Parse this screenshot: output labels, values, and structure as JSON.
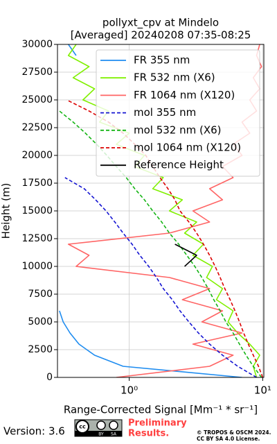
{
  "chart_data": {
    "type": "line",
    "title": "pollyxt_cpv at Mindelo",
    "subtitle": "[Averaged] 20240208 07:35-08:25",
    "x_label": "Range-Corrected Signal [Mm⁻¹ * sr⁻¹]",
    "y_label": "Height (m)",
    "xscale": "log",
    "grid": true,
    "legend": "upper right",
    "xlim": [
      0.29,
      10.2
    ],
    "xticks": [
      {
        "value": 1,
        "label": "10⁰"
      },
      {
        "value": 10,
        "label": "10¹"
      }
    ],
    "ylim": [
      0,
      30000
    ],
    "yticks": [
      0,
      2500,
      5000,
      7500,
      10000,
      12500,
      15000,
      17500,
      20000,
      22500,
      25000,
      27500,
      30000
    ],
    "y": [
      0,
      1000,
      2000,
      3000,
      4000,
      5000,
      6000,
      7000,
      8000,
      9000,
      10000,
      11000,
      12000,
      13000,
      14000,
      15000,
      16000,
      17000,
      18000,
      19000,
      20000,
      21000,
      22000,
      23000,
      24000,
      25000,
      26000,
      27000,
      28000,
      29000,
      30000
    ],
    "series": [
      {
        "name": "FR 355 nm",
        "color": "#1e8cf0",
        "dash": false,
        "values": [
          7,
          0.9,
          0.55,
          0.42,
          0.36,
          0.32,
          0.3,
          null,
          null,
          null,
          null,
          null,
          null,
          null,
          null,
          null,
          null,
          null,
          null,
          null,
          null,
          null,
          null,
          null,
          null,
          null,
          null,
          null,
          null,
          0.4,
          0.35
        ]
      },
      {
        "name": "FR 532 nm (X6)",
        "color": "#80f000",
        "dash": false,
        "values": [
          9,
          8.5,
          9.5,
          8,
          6.5,
          5.5,
          6,
          4.5,
          5,
          3.8,
          4.2,
          3,
          3.6,
          2.6,
          3.2,
          2,
          2.5,
          1.5,
          1.8,
          1.1,
          1.3,
          0.8,
          1,
          0.6,
          0.7,
          0.45,
          0.55,
          0.38,
          0.5,
          0.35,
          0.4
        ]
      },
      {
        "name": "FR 1064 nm (X120)",
        "color": "#ff6464",
        "dash": false,
        "values": [
          0.8,
          4,
          6,
          3,
          7,
          3.5,
          5,
          2.5,
          4,
          2,
          0.4,
          0.5,
          0.35,
          2,
          4,
          3,
          5,
          4,
          6,
          5,
          7,
          6,
          8,
          7,
          9,
          8,
          9.5,
          8.5,
          9.8,
          9,
          9.5
        ]
      },
      {
        "name": "mol 355 nm",
        "color": "#1414d2",
        "dash": true,
        "values": [
          9,
          6.5,
          5,
          4,
          3.3,
          2.8,
          2.4,
          2.1,
          1.8,
          1.6,
          1.4,
          1.2,
          1.05,
          0.9,
          0.78,
          0.67,
          0.56,
          0.46,
          0.33,
          null,
          null,
          null,
          null,
          null,
          null,
          null,
          null,
          null,
          null,
          null,
          null
        ]
      },
      {
        "name": "mol 532 nm (X6)",
        "color": "#14b414",
        "dash": true,
        "values": [
          9.8,
          8.5,
          7.5,
          6.7,
          6,
          5.3,
          4.8,
          4.3,
          3.9,
          3.5,
          3.1,
          2.7,
          2.35,
          2,
          1.75,
          1.5,
          1.3,
          1.1,
          0.95,
          0.8,
          0.68,
          0.57,
          0.47,
          0.38,
          0.3,
          null,
          null,
          null,
          null,
          null,
          null
        ]
      },
      {
        "name": "mol 1064 nm (X120)",
        "color": "#dc0000",
        "dash": true,
        "values": [
          10,
          9.3,
          8.5,
          7.8,
          7.2,
          6.7,
          6.2,
          5.7,
          5.2,
          4.8,
          4.4,
          4,
          3.6,
          3.2,
          2.8,
          2.4,
          2.2,
          1.95,
          1.7,
          1.5,
          1.33,
          1.1,
          0.9,
          0.7,
          0.5,
          0.34,
          null,
          null,
          null,
          null,
          null
        ]
      },
      {
        "name": "Reference Height",
        "color": "#000000",
        "dash": false,
        "values": [
          null,
          null,
          null,
          null,
          null,
          null,
          null,
          null,
          null,
          null,
          2.6,
          3.2,
          2.2,
          null,
          null,
          null,
          null,
          null,
          null,
          null,
          null,
          null,
          null,
          null,
          null,
          null,
          null,
          null,
          null,
          null,
          null
        ]
      }
    ]
  },
  "footer": {
    "version": "Version: 3.6",
    "license_badge": [
      "cc",
      "BY",
      "SA"
    ],
    "status": [
      "Preliminary",
      "Results."
    ],
    "copyright": [
      "© TROPOS & OSCM 2024.",
      "CC BY SA 4.0 License."
    ]
  }
}
